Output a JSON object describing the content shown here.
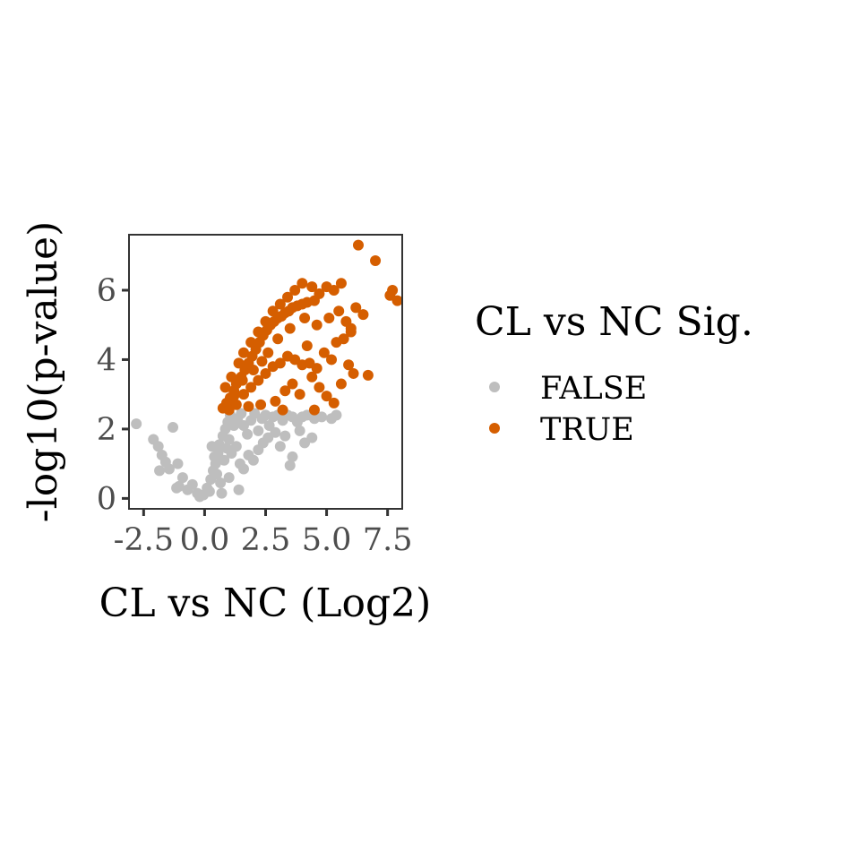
{
  "chart_data": {
    "type": "scatter",
    "title": "",
    "xlabel": "CL vs NC (Log2)",
    "ylabel": "-log10(p-value)",
    "xlim": [
      -3.1,
      8.1
    ],
    "ylim": [
      -0.3,
      7.6
    ],
    "x_ticks": [
      -2.5,
      0.0,
      2.5,
      5.0,
      7.5
    ],
    "x_tick_labels": [
      "-2.5",
      "0.0",
      "2.5",
      "5.0",
      "7.5"
    ],
    "y_ticks": [
      0,
      2,
      4,
      6
    ],
    "y_tick_labels": [
      "0",
      "2",
      "4",
      "6"
    ],
    "grid": false,
    "legend": {
      "title": "CL vs NC Sig.",
      "placement": "right"
    },
    "series": [
      {
        "name": "FALSE",
        "color": "#bebebe",
        "points": [
          [
            -2.8,
            2.15
          ],
          [
            -2.1,
            1.7
          ],
          [
            -1.9,
            1.5
          ],
          [
            -1.75,
            1.25
          ],
          [
            -1.6,
            1.05
          ],
          [
            -1.85,
            0.8
          ],
          [
            -1.3,
            2.05
          ],
          [
            -1.45,
            0.85
          ],
          [
            -1.1,
            1.0
          ],
          [
            -0.9,
            0.6
          ],
          [
            -1.05,
            0.35
          ],
          [
            -1.15,
            0.3
          ],
          [
            -0.7,
            0.25
          ],
          [
            -0.5,
            0.4
          ],
          [
            -0.3,
            0.15
          ],
          [
            -0.2,
            0.05
          ],
          [
            -0.05,
            0.1
          ],
          [
            0.1,
            0.3
          ],
          [
            0.25,
            0.55
          ],
          [
            0.35,
            0.8
          ],
          [
            0.45,
            1.0
          ],
          [
            0.55,
            1.3
          ],
          [
            0.6,
            1.55
          ],
          [
            0.75,
            1.8
          ],
          [
            0.85,
            2.0
          ],
          [
            0.95,
            2.2
          ],
          [
            1.05,
            2.4
          ],
          [
            0.3,
            1.5
          ],
          [
            0.4,
            1.2
          ],
          [
            0.5,
            0.7
          ],
          [
            0.65,
            0.45
          ],
          [
            0.8,
            1.1
          ],
          [
            0.9,
            1.45
          ],
          [
            1.0,
            1.7
          ],
          [
            1.2,
            2.1
          ],
          [
            1.35,
            2.3
          ],
          [
            1.5,
            2.45
          ],
          [
            1.6,
            2.1
          ],
          [
            1.75,
            1.85
          ],
          [
            1.9,
            2.25
          ],
          [
            2.05,
            2.45
          ],
          [
            2.2,
            1.95
          ],
          [
            2.35,
            2.3
          ],
          [
            2.5,
            2.4
          ],
          [
            2.65,
            2.1
          ],
          [
            2.8,
            2.35
          ],
          [
            3.0,
            2.4
          ],
          [
            3.2,
            2.25
          ],
          [
            3.4,
            2.4
          ],
          [
            3.6,
            2.35
          ],
          [
            3.8,
            2.2
          ],
          [
            4.0,
            2.35
          ],
          [
            4.2,
            2.4
          ],
          [
            4.5,
            2.3
          ],
          [
            4.8,
            2.35
          ],
          [
            5.2,
            2.3
          ],
          [
            5.4,
            2.4
          ],
          [
            1.1,
            1.3
          ],
          [
            1.3,
            1.5
          ],
          [
            1.45,
            1.0
          ],
          [
            1.6,
            0.85
          ],
          [
            1.8,
            1.25
          ],
          [
            2.0,
            1.1
          ],
          [
            2.2,
            1.4
          ],
          [
            2.4,
            1.6
          ],
          [
            2.6,
            1.75
          ],
          [
            2.9,
            1.9
          ],
          [
            3.1,
            1.5
          ],
          [
            3.3,
            1.8
          ],
          [
            3.6,
            1.2
          ],
          [
            3.9,
            1.95
          ],
          [
            4.1,
            1.6
          ],
          [
            4.4,
            1.75
          ],
          [
            3.5,
            0.95
          ],
          [
            1.4,
            0.25
          ],
          [
            1.0,
            0.6
          ],
          [
            0.7,
            0.15
          ],
          [
            0.2,
            0.2
          ]
        ]
      },
      {
        "name": "TRUE",
        "color": "#d55e00",
        "points": [
          [
            0.75,
            2.6
          ],
          [
            0.9,
            2.75
          ],
          [
            1.05,
            2.9
          ],
          [
            1.2,
            3.1
          ],
          [
            1.3,
            3.3
          ],
          [
            1.5,
            3.5
          ],
          [
            1.65,
            3.7
          ],
          [
            1.8,
            3.9
          ],
          [
            1.95,
            4.1
          ],
          [
            2.1,
            4.3
          ],
          [
            2.25,
            4.5
          ],
          [
            2.4,
            4.7
          ],
          [
            2.55,
            4.85
          ],
          [
            2.7,
            5.0
          ],
          [
            2.85,
            5.1
          ],
          [
            3.0,
            5.2
          ],
          [
            3.15,
            5.25
          ],
          [
            3.3,
            5.35
          ],
          [
            3.45,
            5.4
          ],
          [
            3.6,
            5.5
          ],
          [
            3.8,
            5.55
          ],
          [
            4.0,
            5.6
          ],
          [
            4.2,
            5.65
          ],
          [
            4.5,
            5.7
          ],
          [
            1.1,
            3.5
          ],
          [
            1.4,
            3.9
          ],
          [
            1.6,
            4.2
          ],
          [
            1.9,
            4.5
          ],
          [
            2.2,
            4.8
          ],
          [
            2.5,
            5.1
          ],
          [
            2.8,
            5.4
          ],
          [
            3.1,
            5.6
          ],
          [
            3.4,
            5.8
          ],
          [
            3.7,
            6.0
          ],
          [
            4.0,
            6.2
          ],
          [
            4.4,
            6.1
          ],
          [
            4.7,
            5.9
          ],
          [
            5.0,
            6.1
          ],
          [
            5.3,
            6.0
          ],
          [
            5.5,
            5.4
          ],
          [
            5.8,
            5.1
          ],
          [
            6.0,
            4.8
          ],
          [
            1.3,
            2.7
          ],
          [
            1.6,
            3.0
          ],
          [
            1.9,
            3.2
          ],
          [
            2.2,
            3.4
          ],
          [
            2.5,
            3.6
          ],
          [
            2.8,
            3.8
          ],
          [
            3.1,
            3.9
          ],
          [
            3.4,
            4.1
          ],
          [
            3.7,
            4.0
          ],
          [
            4.0,
            3.85
          ],
          [
            4.3,
            3.9
          ],
          [
            4.6,
            3.75
          ],
          [
            4.9,
            4.2
          ],
          [
            5.2,
            4.0
          ],
          [
            5.4,
            4.5
          ],
          [
            5.7,
            4.6
          ],
          [
            6.0,
            4.9
          ],
          [
            6.2,
            5.5
          ],
          [
            6.1,
            3.6
          ],
          [
            6.7,
            3.55
          ],
          [
            6.3,
            7.3
          ],
          [
            7.0,
            6.85
          ],
          [
            7.7,
            6.0
          ],
          [
            7.6,
            5.85
          ],
          [
            7.9,
            5.7
          ],
          [
            5.6,
            6.2
          ],
          [
            1.0,
            2.55
          ],
          [
            1.8,
            2.65
          ],
          [
            2.3,
            2.7
          ],
          [
            2.9,
            2.8
          ],
          [
            3.3,
            3.1
          ],
          [
            3.6,
            3.3
          ],
          [
            3.9,
            3.0
          ],
          [
            4.4,
            3.5
          ],
          [
            4.7,
            3.2
          ],
          [
            5.0,
            2.95
          ],
          [
            5.6,
            3.3
          ],
          [
            5.9,
            3.85
          ],
          [
            2.0,
            3.7
          ],
          [
            2.6,
            4.2
          ],
          [
            3.0,
            4.6
          ],
          [
            3.5,
            4.9
          ],
          [
            4.1,
            5.2
          ],
          [
            4.6,
            5.0
          ],
          [
            5.1,
            5.2
          ],
          [
            1.2,
            2.95
          ],
          [
            1.55,
            3.4
          ],
          [
            2.35,
            3.95
          ],
          [
            4.2,
            4.4
          ],
          [
            3.2,
            2.55
          ],
          [
            4.5,
            2.55
          ],
          [
            5.3,
            2.75
          ],
          [
            0.85,
            3.2
          ],
          [
            6.5,
            5.3
          ]
        ]
      }
    ]
  }
}
